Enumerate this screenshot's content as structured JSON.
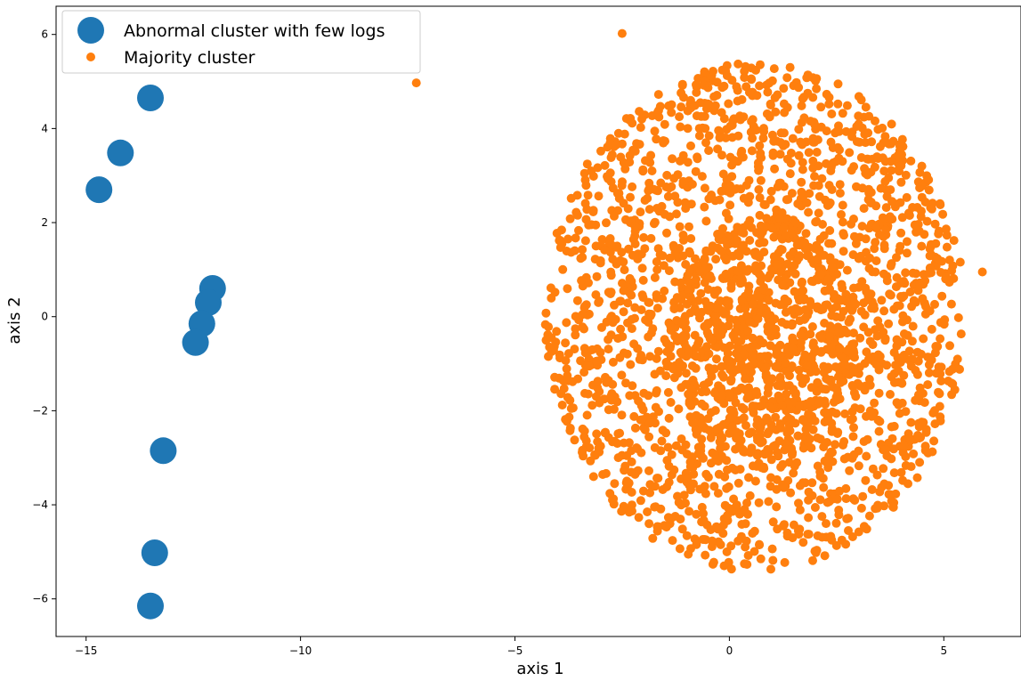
{
  "chart_data": {
    "type": "scatter",
    "xlabel": "axis 1",
    "ylabel": "axis 2",
    "xlim": [
      -15.7,
      6.8
    ],
    "ylim": [
      -6.8,
      6.6
    ],
    "xticks": [
      -15,
      -10,
      -5,
      0,
      5
    ],
    "yticks": [
      -6,
      -4,
      -2,
      0,
      2,
      4,
      6
    ],
    "xtick_labels": [
      "−15",
      "−10",
      "−5",
      "0",
      "5"
    ],
    "ytick_labels": [
      "−6",
      "−4",
      "−2",
      "0",
      "2",
      "4",
      "6"
    ],
    "grid": false,
    "legend_position": "top-left",
    "series": [
      {
        "name": "Abnormal cluster with few logs",
        "color": "#1f77b4",
        "marker": "large-circle",
        "points": [
          [
            -13.5,
            4.65
          ],
          [
            -14.2,
            3.48
          ],
          [
            -14.7,
            2.7
          ],
          [
            -12.05,
            0.6
          ],
          [
            -12.15,
            0.3
          ],
          [
            -12.3,
            -0.15
          ],
          [
            -12.45,
            -0.55
          ],
          [
            -13.2,
            -2.85
          ],
          [
            -13.4,
            -5.02
          ],
          [
            -13.5,
            -6.15
          ]
        ]
      },
      {
        "name": "Majority cluster",
        "color": "#ff7f0e",
        "marker": "small-circle",
        "approx_point_count": 2500,
        "distribution": {
          "shape": "elliptical-uniform",
          "center": [
            0.6,
            0.0
          ],
          "semi_axis_x": 4.9,
          "semi_axis_y": 5.4,
          "dense_core_center": [
            0.8,
            -0.4
          ]
        },
        "outliers": [
          [
            -7.3,
            4.97
          ],
          [
            -2.5,
            6.02
          ],
          [
            5.9,
            0.95
          ]
        ]
      }
    ]
  }
}
